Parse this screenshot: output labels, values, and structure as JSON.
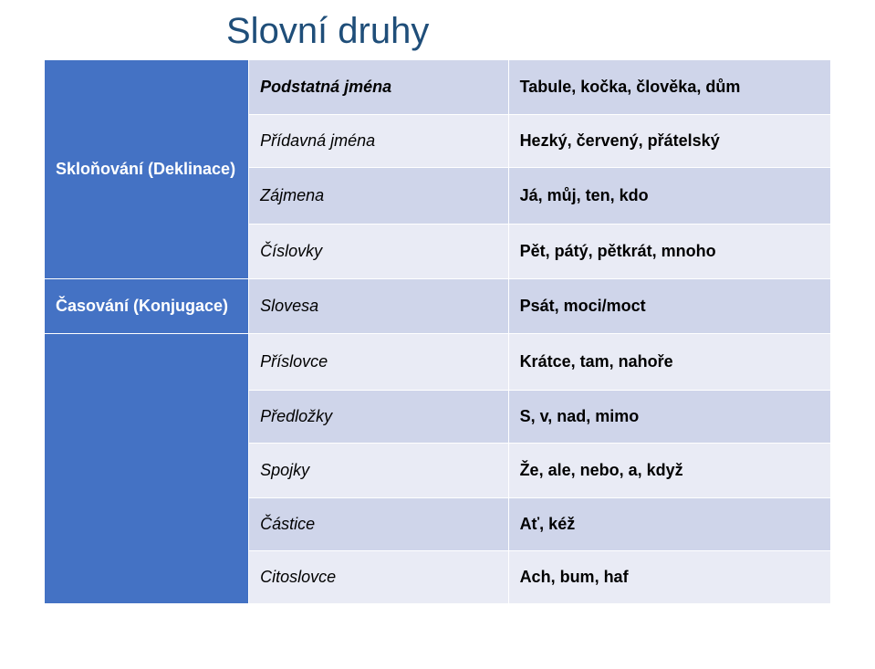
{
  "title": "Slovní druhy",
  "groups": {
    "sklonovani": {
      "label": "Skloňování (Deklinace)"
    },
    "casovani": {
      "label": "Časování (Konjugace)"
    }
  },
  "rows": [
    {
      "type": "Podstatná jména",
      "example": "Tabule, kočka, člověka, dům",
      "shade": "dark",
      "bold": true
    },
    {
      "type": "Přídavná jména",
      "example": "Hezký, červený, přátelský",
      "shade": "light"
    },
    {
      "type": "Zájmena",
      "example": "Já, můj, ten, kdo",
      "shade": "dark"
    },
    {
      "type": "Číslovky",
      "example": "Pět, pátý, pětkrát, mnoho",
      "shade": "light"
    },
    {
      "type": "Slovesa",
      "example": "Psát, moci/moct",
      "shade": "dark"
    },
    {
      "type": "Příslovce",
      "example": "Krátce, tam, nahoře",
      "shade": "light"
    },
    {
      "type": "Předložky",
      "example": "S, v, nad, mimo",
      "shade": "dark"
    },
    {
      "type": "Spojky",
      "example": "Že, ale, nebo, a, když",
      "shade": "light"
    },
    {
      "type": "Částice",
      "example": "Ať, kéž",
      "shade": "dark"
    },
    {
      "type": "Citoslovce",
      "example": "Ach, bum, haf",
      "shade": "light"
    }
  ],
  "colors": {
    "cat_bg": "#4472c4",
    "dark_bg": "#cfd5ea",
    "light_bg": "#e9ebf5",
    "title_color": "#1f4e79",
    "border": "#ffffff"
  }
}
